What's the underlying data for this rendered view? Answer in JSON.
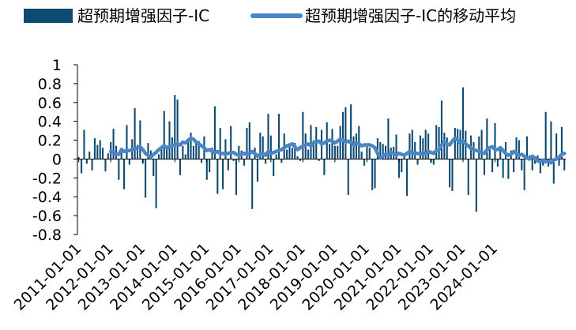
{
  "chart_data": {
    "type": "bar",
    "title": "",
    "xlabel": "",
    "ylabel": "",
    "ylim": [
      -0.8,
      1
    ],
    "yticks": [
      "1",
      "0.8",
      "0.6",
      "0.4",
      "0.2",
      "0",
      "-0.2",
      "-0.4",
      "-0.6",
      "-0.8"
    ],
    "ytick_values": [
      1,
      0.8,
      0.6,
      0.4,
      0.2,
      0,
      -0.2,
      -0.4,
      -0.6,
      -0.8
    ],
    "xticks": [
      "2011-01-01",
      "2012-01-01",
      "2013-01-01",
      "2014-01-01",
      "2015-01-01",
      "2016-01-01",
      "2017-01-01",
      "2018-01-01",
      "2019-01-01",
      "2020-01-01",
      "2021-01-01",
      "2022-01-01",
      "2023-01-01",
      "2024-01-01"
    ],
    "grid": false,
    "legend_position": "top",
    "start": "2011-01",
    "colors": {
      "bar": "#0d4a72",
      "line": "#4a86c6"
    },
    "series": [
      {
        "name": "超预期增强因子-IC",
        "type": "bar",
        "values": [
          0.02,
          -0.15,
          0.31,
          -0.05,
          0.08,
          -0.12,
          0.22,
          0.15,
          0.2,
          0.12,
          -0.13,
          0.06,
          0.18,
          0.32,
          0.14,
          -0.22,
          0.12,
          -0.32,
          0.36,
          -0.06,
          0.21,
          0.54,
          0.15,
          0.41,
          -0.05,
          -0.41,
          0.17,
          0.09,
          -0.18,
          -0.52,
          0.05,
          0.1,
          0.51,
          0.12,
          0.4,
          0.23,
          0.68,
          0.63,
          -0.17,
          0.14,
          0.05,
          0.21,
          0.28,
          0.14,
          0.18,
          0.19,
          -0.04,
          0.24,
          -0.22,
          -0.14,
          0.12,
          0.56,
          -0.37,
          0.33,
          -0.32,
          0.21,
          -0.12,
          0.35,
          -0.02,
          -0.38,
          0.14,
          0.09,
          -0.07,
          0.33,
          0.39,
          -0.53,
          0.12,
          -0.24,
          0.28,
          0.24,
          -0.05,
          0.48,
          0.25,
          -0.18,
          0.05,
          0.48,
          -0.04,
          0.27,
          0.1,
          0.16,
          0.12,
          0.17,
          0.03,
          -0.02,
          0.5,
          0.27,
          0.1,
          0.36,
          0.2,
          0.34,
          -0.02,
          0.31,
          -0.17,
          0.39,
          0.16,
          0.32,
          0.14,
          0.14,
          0.35,
          0.5,
          0.55,
          -0.38,
          0.58,
          0.24,
          0.27,
          0.35,
          0.08,
          -0.07,
          0.14,
          0.12,
          -0.33,
          -0.31,
          0.22,
          0.18,
          0.16,
          0.14,
          0.43,
          0.12,
          0.13,
          0.26,
          -0.2,
          -0.14,
          0.05,
          -0.39,
          0.27,
          0.31,
          0.18,
          -0.06,
          0.25,
          0.22,
          0.31,
          0.27,
          -0.04,
          -0.06,
          0.36,
          0.34,
          0.62,
          0.28,
          0.23,
          -0.3,
          -0.34,
          0.33,
          0.32,
          0.31,
          0.76,
          0.3,
          -0.38,
          0.25,
          0.18,
          -0.56,
          0.24,
          0.31,
          -0.17,
          0.43,
          0.12,
          -0.14,
          0.38,
          -0.08,
          0.11,
          -0.2,
          0.18,
          -0.21,
          0.09,
          -0.14,
          0.23,
          0.2,
          -0.12,
          -0.33,
          0.24,
          0.04,
          -0.12,
          -0.05,
          0.04,
          -0.15,
          -0.07,
          0.5,
          -0.08,
          0.4,
          -0.26,
          0.27,
          -0.07,
          0.34,
          -0.12
        ]
      },
      {
        "name": "超预期增强因子-IC的移动平均",
        "type": "line",
        "values": [
          null,
          null,
          null,
          null,
          null,
          null,
          null,
          null,
          null,
          null,
          null,
          null,
          0.08,
          0.07,
          0.05,
          0.05,
          0.1,
          0.08,
          0.09,
          0.09,
          0.1,
          0.11,
          0.12,
          0.13,
          0.1,
          0.06,
          0.04,
          0.02,
          0.05,
          0.07,
          0.1,
          0.12,
          0.14,
          0.12,
          0.13,
          0.14,
          0.15,
          0.16,
          0.15,
          0.18,
          0.17,
          0.2,
          0.22,
          0.21,
          0.18,
          0.16,
          0.14,
          0.12,
          0.09,
          0.1,
          0.08,
          0.07,
          0.08,
          0.06,
          0.06,
          0.05,
          0.06,
          0.07,
          0.07,
          0.05,
          0.04,
          0.05,
          0.06,
          0.05,
          0.06,
          0.08,
          0.06,
          0.03,
          0.05,
          0.06,
          0.04,
          0.08,
          0.06,
          0.07,
          0.08,
          0.09,
          0.1,
          0.12,
          0.14,
          0.15,
          0.16,
          0.13,
          0.1,
          0.12,
          0.14,
          0.15,
          0.16,
          0.14,
          0.17,
          0.18,
          0.19,
          0.16,
          0.17,
          0.19,
          0.2,
          0.19,
          0.17,
          0.19,
          0.21,
          0.2,
          0.18,
          0.19,
          0.17,
          0.15,
          0.17,
          0.16,
          0.14,
          0.15,
          0.15,
          0.15,
          0.14,
          0.12,
          0.06,
          0.01,
          0.03,
          0.05,
          0.04,
          0.07,
          0.06,
          0.04,
          0.06,
          0.05,
          0.04,
          0.06,
          0.08,
          0.07,
          0.06,
          0.06,
          0.05,
          0.07,
          0.06,
          0.08,
          0.07,
          0.06,
          0.09,
          0.1,
          0.15,
          0.18,
          0.16,
          0.15,
          0.19,
          0.22,
          0.2,
          0.17,
          0.19,
          0.16,
          0.14,
          0.11,
          0.1,
          0.09,
          0.08,
          0.07,
          0.06,
          0.1,
          0.12,
          0.13,
          0.1,
          0.1,
          0.12,
          0.09,
          0.06,
          0.04,
          0.05,
          0.08,
          0.06,
          0.04,
          0.05,
          0.03,
          0.01,
          0.0,
          0.03,
          0.01,
          -0.02,
          -0.03,
          -0.01,
          -0.03,
          -0.02,
          -0.04,
          -0.01,
          0.0,
          0.02,
          0.05,
          0.06
        ]
      }
    ]
  }
}
